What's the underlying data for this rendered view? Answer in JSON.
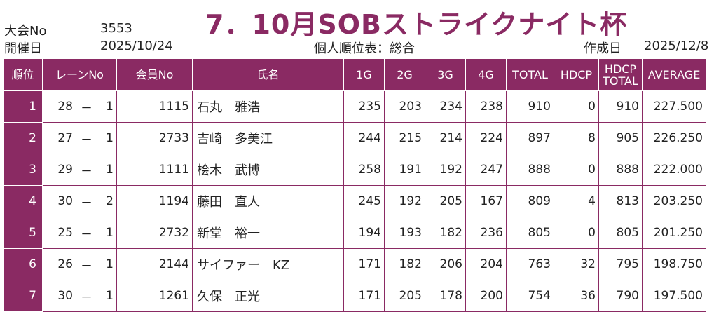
{
  "header": {
    "tournament_no_label": "大会No",
    "tournament_no": "3553",
    "date_label": "開催日",
    "date": "2025/10/24",
    "title": "7．10月SOBストライクナイト杯",
    "table_title": "個人順位表：総合",
    "created_label": "作成日",
    "created_date": "2025/12/8"
  },
  "columns": {
    "rank": "順位",
    "lane": "レーンNo",
    "member": "会員No",
    "name": "氏名",
    "g1": "1G",
    "g2": "2G",
    "g3": "3G",
    "g4": "4G",
    "total": "TOTAL",
    "hdcp": "HDCP",
    "hdcp_total_1": "HDCP",
    "hdcp_total_2": "TOTAL",
    "average": "AVERAGE"
  },
  "colors": {
    "accent": "#8a2a63"
  },
  "rows": [
    {
      "rank": "1",
      "lane": "28",
      "dash": "－",
      "seat": "1",
      "member": "1115",
      "name": "石丸　雅浩",
      "g1": "235",
      "g2": "203",
      "g3": "234",
      "g4": "238",
      "total": "910",
      "hdcp": "0",
      "hdcp_total": "910",
      "average": "227.500"
    },
    {
      "rank": "2",
      "lane": "27",
      "dash": "－",
      "seat": "1",
      "member": "2733",
      "name": "吉崎　多美江",
      "g1": "244",
      "g2": "215",
      "g3": "214",
      "g4": "224",
      "total": "897",
      "hdcp": "8",
      "hdcp_total": "905",
      "average": "226.250"
    },
    {
      "rank": "3",
      "lane": "29",
      "dash": "－",
      "seat": "1",
      "member": "1111",
      "name": "桧木　武博",
      "g1": "258",
      "g2": "191",
      "g3": "192",
      "g4": "247",
      "total": "888",
      "hdcp": "0",
      "hdcp_total": "888",
      "average": "222.000"
    },
    {
      "rank": "4",
      "lane": "30",
      "dash": "－",
      "seat": "2",
      "member": "1194",
      "name": "藤田　直人",
      "g1": "245",
      "g2": "192",
      "g3": "205",
      "g4": "167",
      "total": "809",
      "hdcp": "4",
      "hdcp_total": "813",
      "average": "203.250"
    },
    {
      "rank": "5",
      "lane": "25",
      "dash": "－",
      "seat": "1",
      "member": "2732",
      "name": "新堂　裕一",
      "g1": "194",
      "g2": "193",
      "g3": "182",
      "g4": "236",
      "total": "805",
      "hdcp": "0",
      "hdcp_total": "805",
      "average": "201.250"
    },
    {
      "rank": "6",
      "lane": "26",
      "dash": "－",
      "seat": "1",
      "member": "2144",
      "name": "サイファー　KZ",
      "g1": "171",
      "g2": "182",
      "g3": "206",
      "g4": "204",
      "total": "763",
      "hdcp": "32",
      "hdcp_total": "795",
      "average": "198.750"
    },
    {
      "rank": "7",
      "lane": "30",
      "dash": "－",
      "seat": "1",
      "member": "1261",
      "name": "久保　正光",
      "g1": "171",
      "g2": "205",
      "g3": "178",
      "g4": "200",
      "total": "754",
      "hdcp": "36",
      "hdcp_total": "790",
      "average": "197.500"
    }
  ]
}
